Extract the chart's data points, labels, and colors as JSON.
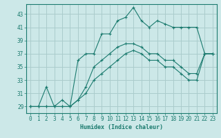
{
  "xlabel": "Humidex (Indice chaleur)",
  "bg_color": "#cce8e8",
  "grid_color": "#aacccc",
  "line_color": "#1a7a6e",
  "xlim": [
    -0.5,
    23.5
  ],
  "ylim": [
    28.0,
    44.5
  ],
  "yticks": [
    29,
    31,
    33,
    35,
    37,
    39,
    41,
    43
  ],
  "xticks": [
    0,
    1,
    2,
    3,
    4,
    5,
    6,
    7,
    8,
    9,
    10,
    11,
    12,
    13,
    14,
    15,
    16,
    17,
    18,
    19,
    20,
    21,
    22,
    23
  ],
  "series": [
    [
      29,
      29,
      32,
      29,
      30,
      29,
      36,
      37,
      37,
      40,
      40,
      42,
      42.5,
      44,
      42,
      41,
      42,
      41.5,
      41,
      41,
      41,
      41,
      37,
      37
    ],
    [
      29,
      29,
      29,
      29,
      29,
      29,
      30,
      32,
      35,
      36,
      37,
      38,
      38.5,
      38.5,
      38,
      37,
      37,
      36,
      36,
      35,
      34,
      34,
      37,
      37
    ],
    [
      29,
      29,
      29,
      29,
      29,
      29,
      30,
      31,
      33,
      34,
      35,
      36,
      37,
      37.5,
      37,
      36,
      36,
      35,
      35,
      34,
      33,
      33,
      37,
      37
    ]
  ],
  "tick_fontsize": 5.5,
  "xlabel_fontsize": 6.0
}
